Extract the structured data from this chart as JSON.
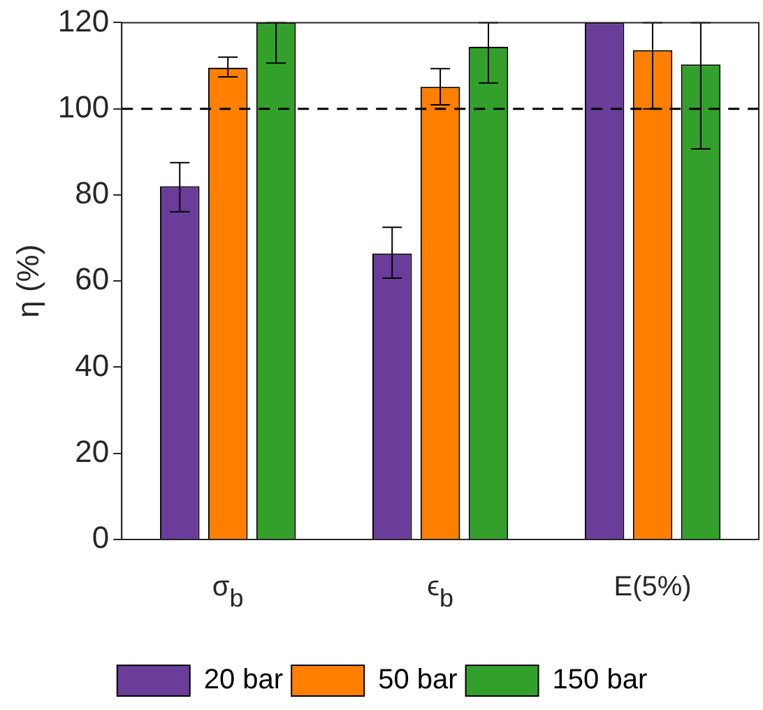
{
  "chart_data": {
    "type": "bar",
    "categories": [
      "σ$_{b}$",
      "ϵ$_{b}$",
      "E(5%)"
    ],
    "ylabel": "η (%)",
    "ylim": [
      0,
      120
    ],
    "yticks": [
      0,
      20,
      40,
      60,
      80,
      100,
      120
    ],
    "series": [
      {
        "name": "20 bar",
        "color": "#6a3d9a",
        "values": [
          82,
          66.4,
          120
        ],
        "errors": [
          [
            76.1,
            87.5
          ],
          [
            60.7,
            72.5
          ],
          null
        ]
      },
      {
        "name": "50 bar",
        "color": "#ff7f00",
        "values": [
          109.5,
          105.1,
          113.6
        ],
        "errors": [
          [
            107.4,
            112
          ],
          [
            100.9,
            109.3
          ],
          [
            100,
            120
          ]
        ]
      },
      {
        "name": "150 bar",
        "color": "#33a02c",
        "values": [
          120,
          114.4,
          110.3
        ],
        "errors": [
          [
            110.6,
            120
          ],
          [
            106,
            120
          ],
          [
            90.7,
            120
          ]
        ]
      }
    ],
    "ref_lines": [
      {
        "axis": "y",
        "value": 100,
        "label": null,
        "color": "#000000",
        "line_style": "dashed"
      }
    ],
    "legend": "bottom",
    "grid": false
  }
}
